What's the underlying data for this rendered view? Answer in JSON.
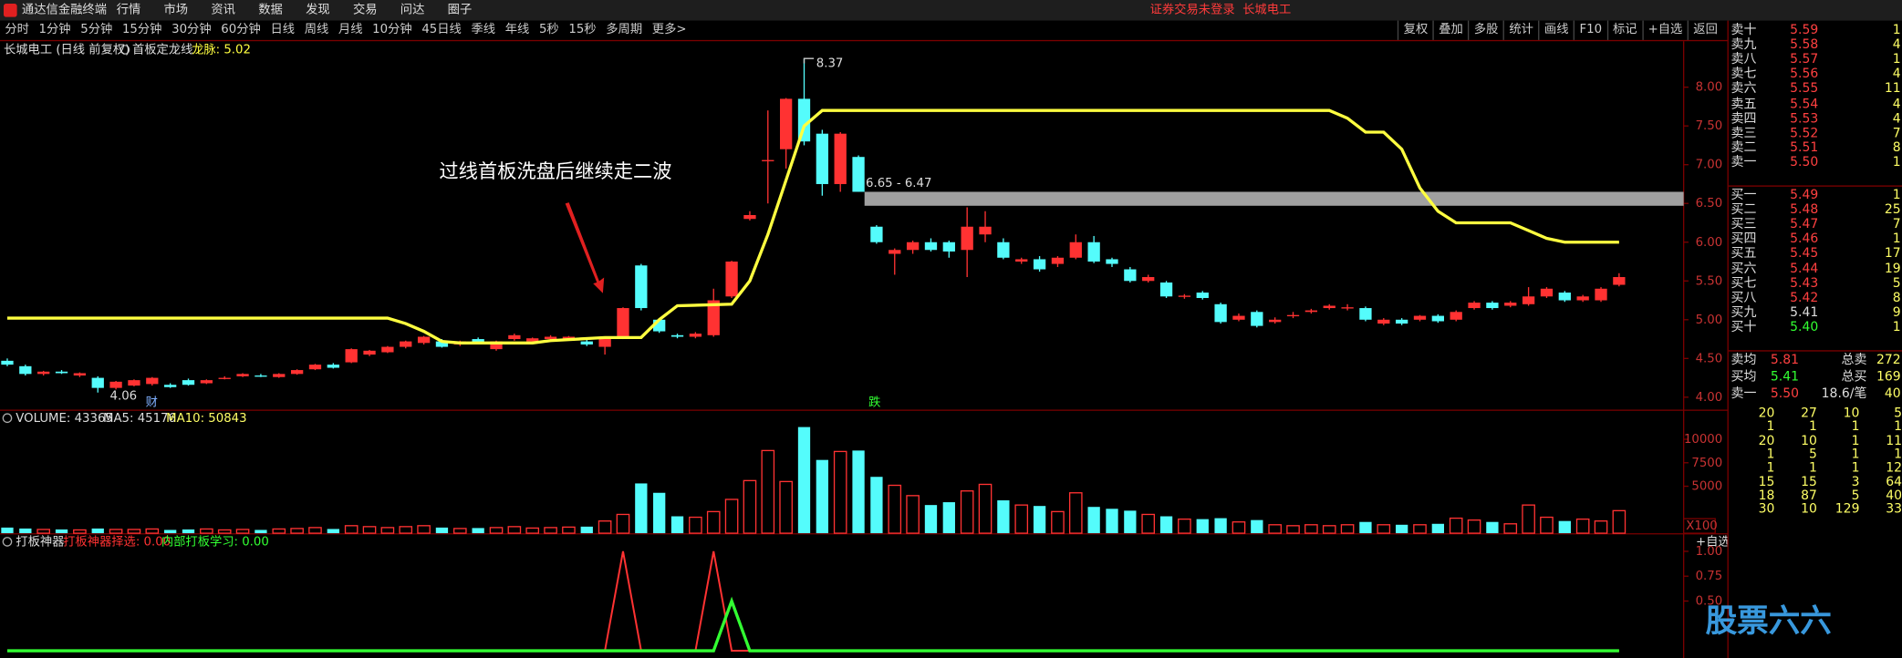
{
  "window": {
    "app": "通达信金融终端",
    "menu": [
      "行情",
      "市场",
      "资讯",
      "数据",
      "发现",
      "交易",
      "问达",
      "圈子"
    ],
    "status": "证券交易未登录",
    "stock": "长城电工"
  },
  "toolbar": {
    "periods": [
      "分时",
      "1分钟",
      "5分钟",
      "15分钟",
      "30分钟",
      "60分钟",
      "日线",
      "周线",
      "月线",
      "10分钟",
      "45日线",
      "季线",
      "年线",
      "5秒",
      "15秒",
      "多周期",
      "更多>"
    ],
    "actions": [
      "复权",
      "叠加",
      "多股",
      "统计",
      "画线",
      "F10",
      "标记",
      "+自选",
      "返回"
    ]
  },
  "chart_data": [
    {
      "type": "candlestick",
      "title": "长城电工 (日线 前复权)",
      "indicator": "首板定龙线",
      "up_color": "#ff3232",
      "down_color": "#54fcfc",
      "ohlc": [
        [
          4.47,
          4.5,
          4.4,
          4.42
        ],
        [
          4.4,
          4.42,
          4.28,
          4.3
        ],
        [
          4.3,
          4.34,
          4.28,
          4.33
        ],
        [
          4.33,
          4.35,
          4.3,
          4.31
        ],
        [
          4.28,
          4.32,
          4.26,
          4.31
        ],
        [
          4.25,
          4.27,
          4.06,
          4.12
        ],
        [
          4.12,
          4.21,
          4.1,
          4.2
        ],
        [
          4.15,
          4.23,
          4.14,
          4.22
        ],
        [
          4.17,
          4.26,
          4.15,
          4.25
        ],
        [
          4.16,
          4.18,
          4.12,
          4.13
        ],
        [
          4.22,
          4.24,
          4.15,
          4.16
        ],
        [
          4.18,
          4.23,
          4.17,
          4.22
        ],
        [
          4.25,
          4.27,
          4.23,
          4.25
        ],
        [
          4.27,
          4.31,
          4.26,
          4.3
        ],
        [
          4.28,
          4.3,
          4.26,
          4.27
        ],
        [
          4.26,
          4.31,
          4.25,
          4.3
        ],
        [
          4.3,
          4.36,
          4.29,
          4.35
        ],
        [
          4.36,
          4.43,
          4.35,
          4.42
        ],
        [
          4.42,
          4.44,
          4.37,
          4.38
        ],
        [
          4.45,
          4.63,
          4.44,
          4.62
        ],
        [
          4.55,
          4.61,
          4.53,
          4.6
        ],
        [
          4.58,
          4.66,
          4.57,
          4.65
        ],
        [
          4.65,
          4.73,
          4.63,
          4.72
        ],
        [
          4.7,
          4.79,
          4.68,
          4.78
        ],
        [
          4.72,
          4.75,
          4.64,
          4.65
        ],
        [
          4.68,
          4.73,
          4.66,
          4.72
        ],
        [
          4.75,
          4.77,
          4.69,
          4.7
        ],
        [
          4.62,
          4.73,
          4.6,
          4.72
        ],
        [
          4.75,
          4.82,
          4.73,
          4.8
        ],
        [
          4.72,
          4.77,
          4.7,
          4.76
        ],
        [
          4.75,
          4.8,
          4.73,
          4.78
        ],
        [
          4.75,
          4.79,
          4.73,
          4.78
        ],
        [
          4.72,
          4.74,
          4.66,
          4.68
        ],
        [
          4.65,
          4.77,
          4.55,
          4.76
        ],
        [
          4.76,
          5.16,
          4.75,
          5.15
        ],
        [
          5.7,
          5.72,
          5.12,
          5.15
        ],
        [
          5.0,
          5.02,
          4.83,
          4.85
        ],
        [
          4.8,
          4.82,
          4.76,
          4.78
        ],
        [
          4.78,
          4.84,
          4.76,
          4.82
        ],
        [
          4.8,
          5.4,
          4.78,
          5.25
        ],
        [
          5.3,
          5.76,
          5.28,
          5.75
        ],
        [
          6.3,
          6.4,
          6.28,
          6.35
        ],
        [
          7.05,
          7.7,
          6.5,
          7.06
        ],
        [
          7.2,
          7.86,
          6.95,
          7.85
        ],
        [
          7.85,
          8.37,
          7.25,
          7.3
        ],
        [
          7.4,
          7.45,
          6.6,
          6.75
        ],
        [
          6.75,
          7.42,
          6.65,
          7.4
        ],
        [
          7.1,
          7.12,
          6.65,
          6.65
        ],
        [
          6.2,
          6.22,
          5.98,
          6.0
        ],
        [
          5.85,
          5.92,
          5.58,
          5.9
        ],
        [
          5.9,
          6.02,
          5.85,
          6.0
        ],
        [
          6.0,
          6.05,
          5.88,
          5.9
        ],
        [
          6.0,
          6.02,
          5.8,
          5.88
        ],
        [
          5.9,
          6.45,
          5.55,
          6.2
        ],
        [
          6.1,
          6.4,
          6.0,
          6.2
        ],
        [
          6.0,
          6.05,
          5.78,
          5.8
        ],
        [
          5.75,
          5.8,
          5.72,
          5.78
        ],
        [
          5.78,
          5.82,
          5.62,
          5.65
        ],
        [
          5.72,
          5.82,
          5.68,
          5.8
        ],
        [
          5.8,
          6.1,
          5.78,
          6.0
        ],
        [
          6.0,
          6.08,
          5.73,
          5.75
        ],
        [
          5.78,
          5.8,
          5.68,
          5.72
        ],
        [
          5.65,
          5.68,
          5.48,
          5.5
        ],
        [
          5.5,
          5.58,
          5.48,
          5.55
        ],
        [
          5.48,
          5.5,
          5.28,
          5.3
        ],
        [
          5.3,
          5.33,
          5.27,
          5.31
        ],
        [
          5.35,
          5.37,
          5.26,
          5.28
        ],
        [
          5.2,
          5.22,
          4.95,
          4.97
        ],
        [
          5.0,
          5.08,
          4.98,
          5.05
        ],
        [
          5.1,
          5.12,
          4.9,
          4.92
        ],
        [
          4.97,
          5.03,
          4.95,
          5.0
        ],
        [
          5.05,
          5.1,
          5.02,
          5.06
        ],
        [
          5.1,
          5.14,
          5.08,
          5.12
        ],
        [
          5.15,
          5.2,
          5.13,
          5.18
        ],
        [
          5.15,
          5.2,
          5.12,
          5.16
        ],
        [
          5.15,
          5.17,
          4.98,
          5.0
        ],
        [
          4.95,
          5.02,
          4.93,
          5.0
        ],
        [
          5.0,
          5.02,
          4.93,
          4.95
        ],
        [
          5.0,
          5.06,
          4.98,
          5.05
        ],
        [
          5.05,
          5.07,
          4.96,
          4.98
        ],
        [
          5.0,
          5.12,
          4.98,
          5.1
        ],
        [
          5.15,
          5.24,
          5.13,
          5.22
        ],
        [
          5.22,
          5.24,
          5.13,
          5.15
        ],
        [
          5.18,
          5.24,
          5.16,
          5.22
        ],
        [
          5.2,
          5.42,
          5.18,
          5.3
        ],
        [
          5.3,
          5.42,
          5.28,
          5.4
        ],
        [
          5.35,
          5.37,
          5.23,
          5.25
        ],
        [
          5.25,
          5.32,
          5.23,
          5.3
        ],
        [
          5.25,
          5.42,
          5.23,
          5.4
        ],
        [
          5.45,
          5.6,
          5.43,
          5.55
        ]
      ],
      "dragon_line": {
        "current_label": "龙脉: 5.02",
        "color": "#ffff40",
        "x": [
          0,
          21,
          22,
          23,
          24,
          25,
          29,
          30,
          33,
          34,
          35,
          36,
          37,
          40,
          41,
          42,
          43,
          44,
          45,
          73,
          74,
          75,
          76,
          77,
          78,
          79,
          80,
          83,
          84,
          85,
          86,
          89
        ],
        "values": [
          5.02,
          5.02,
          4.95,
          4.85,
          4.72,
          4.7,
          4.7,
          4.73,
          4.77,
          4.77,
          4.77,
          5.0,
          5.18,
          5.2,
          5.5,
          6.1,
          6.8,
          7.5,
          7.7,
          7.7,
          7.6,
          7.42,
          7.42,
          7.2,
          6.7,
          6.4,
          6.25,
          6.25,
          6.15,
          6.05,
          6.0,
          6.0
        ]
      },
      "zone": {
        "top": 6.65,
        "bottom": 6.47,
        "label": "6.65 - 6.47",
        "start": 47,
        "color": "#a0a0a0"
      },
      "high_label": "8.37",
      "low_label": "4.06",
      "markers": [
        "财",
        "跌"
      ],
      "annotation": "过线首板洗盘后继续走二波",
      "ylim": [
        3.84,
        8.39
      ],
      "yticks": [
        {
          "value": 4,
          "label": "4.00"
        },
        {
          "value": 4.5,
          "label": "4.50"
        },
        {
          "value": 5,
          "label": "5.00"
        },
        {
          "value": 5.5,
          "label": "5.50"
        },
        {
          "value": 6,
          "label": "6.00"
        },
        {
          "value": 6.5,
          "label": "6.50"
        },
        {
          "value": 7,
          "label": "7.00"
        },
        {
          "value": 7.5,
          "label": "7.50"
        },
        {
          "value": 8,
          "label": "8.00"
        }
      ]
    },
    {
      "type": "bar",
      "legend": [
        "VOLUME: 43365",
        "MA5: 45176",
        "MA10: 50843"
      ],
      "unit": "X100",
      "values": [
        600,
        500,
        400,
        400,
        350,
        500,
        400,
        400,
        450,
        350,
        400,
        450,
        350,
        400,
        350,
        450,
        500,
        600,
        450,
        800,
        700,
        600,
        700,
        800,
        600,
        500,
        550,
        600,
        700,
        550,
        600,
        650,
        700,
        1300,
        2000,
        5300,
        4300,
        1800,
        1700,
        2300,
        3600,
        5600,
        8800,
        5500,
        11300,
        7800,
        8700,
        8800,
        6000,
        5100,
        4000,
        3000,
        3300,
        4500,
        5200,
        3500,
        3000,
        2900,
        2300,
        4300,
        2800,
        2600,
        2400,
        2000,
        1800,
        1500,
        1500,
        1600,
        1200,
        1400,
        900,
        800,
        900,
        800,
        900,
        1200,
        900,
        900,
        900,
        1000,
        1600,
        1400,
        1200,
        1000,
        3000,
        1700,
        1300,
        1500,
        1300,
        2400
      ],
      "ylim": [
        0,
        12900
      ],
      "yticks": [
        5000,
        7500,
        10000
      ]
    },
    {
      "type": "line",
      "title": "打板神器",
      "series": [
        {
          "name": "打板神器择选: 0.00",
          "color": "#ff3232",
          "values": [
            0,
            0,
            0,
            0,
            0,
            0,
            0,
            0,
            0,
            0,
            0,
            0,
            0,
            0,
            0,
            0,
            0,
            0,
            0,
            0,
            0,
            0,
            0,
            0,
            0,
            0,
            0,
            0,
            0,
            0,
            0,
            0,
            0,
            0,
            1,
            0,
            0,
            0,
            0,
            1,
            0,
            0,
            0,
            0,
            0,
            0,
            0,
            0,
            0,
            0,
            0,
            0,
            0,
            0,
            0,
            0,
            0,
            0,
            0,
            0,
            0,
            0,
            0,
            0,
            0,
            0,
            0,
            0,
            0,
            0,
            0,
            0,
            0,
            0,
            0,
            0,
            0,
            0,
            0,
            0,
            0,
            0,
            0,
            0,
            0,
            0,
            0,
            0,
            0,
            0
          ]
        },
        {
          "name": "内部打板学习: 0.00",
          "color": "#32ff32",
          "values": [
            0,
            0,
            0,
            0,
            0,
            0,
            0,
            0,
            0,
            0,
            0,
            0,
            0,
            0,
            0,
            0,
            0,
            0,
            0,
            0,
            0,
            0,
            0,
            0,
            0,
            0,
            0,
            0,
            0,
            0,
            0,
            0,
            0,
            0,
            0,
            0,
            0,
            0,
            0,
            0,
            0.5,
            0,
            0,
            0,
            0,
            0,
            0,
            0,
            0,
            0,
            0,
            0,
            0,
            0,
            0,
            0,
            0,
            0,
            0,
            0,
            0,
            0,
            0,
            0,
            0,
            0,
            0,
            0,
            0,
            0,
            0,
            0,
            0,
            0,
            0,
            0,
            0,
            0,
            0,
            0,
            0,
            0,
            0,
            0,
            0,
            0,
            0,
            0,
            0,
            0
          ]
        }
      ],
      "ylim": [
        0,
        1.17
      ],
      "yticks": [
        {
          "value": 0.5,
          "label": "0.50"
        },
        {
          "value": 0.75,
          "label": "0.75"
        },
        {
          "value": 1,
          "label": "1.00"
        }
      ]
    }
  ],
  "order_book": {
    "asks": [
      [
        "卖十",
        "5.59",
        "1"
      ],
      [
        "卖九",
        "5.58",
        "4"
      ],
      [
        "卖八",
        "5.57",
        "1"
      ],
      [
        "卖七",
        "5.56",
        "4"
      ],
      [
        "卖六",
        "5.55",
        "11"
      ],
      [
        "卖五",
        "5.54",
        "4"
      ],
      [
        "卖四",
        "5.53",
        "4"
      ],
      [
        "卖三",
        "5.52",
        "7"
      ],
      [
        "卖二",
        "5.51",
        "8"
      ],
      [
        "卖一",
        "5.50",
        "1"
      ]
    ],
    "bids": [
      [
        "买一",
        "5.49",
        "1"
      ],
      [
        "买二",
        "5.48",
        "25"
      ],
      [
        "买三",
        "5.47",
        "7"
      ],
      [
        "买四",
        "5.46",
        "1"
      ],
      [
        "买五",
        "5.45",
        "17"
      ],
      [
        "买六",
        "5.44",
        "19"
      ],
      [
        "买七",
        "5.43",
        "5"
      ],
      [
        "买八",
        "5.42",
        "8"
      ],
      [
        "买九",
        "5.41",
        "9"
      ],
      [
        "买十",
        "5.40",
        "1"
      ]
    ],
    "summary": [
      [
        "卖均",
        "5.81",
        "总卖",
        "272"
      ],
      [
        "买均",
        "5.41",
        "总买",
        "169"
      ],
      [
        "卖一",
        "5.50",
        "18.6/笔",
        "40"
      ]
    ],
    "queue": [
      [
        "20",
        "27",
        "10",
        "5"
      ],
      [
        "1",
        "1",
        "1",
        "1"
      ],
      [
        "20",
        "10",
        "1",
        "11"
      ],
      [
        "1",
        "5",
        "1",
        "1"
      ],
      [
        "1",
        "1",
        "1",
        "12"
      ],
      [
        "15",
        "15",
        "3",
        "64"
      ],
      [
        "18",
        "87",
        "5",
        "40"
      ],
      [
        "30",
        "10",
        "129",
        "33"
      ]
    ]
  },
  "watermark": "股票六六"
}
